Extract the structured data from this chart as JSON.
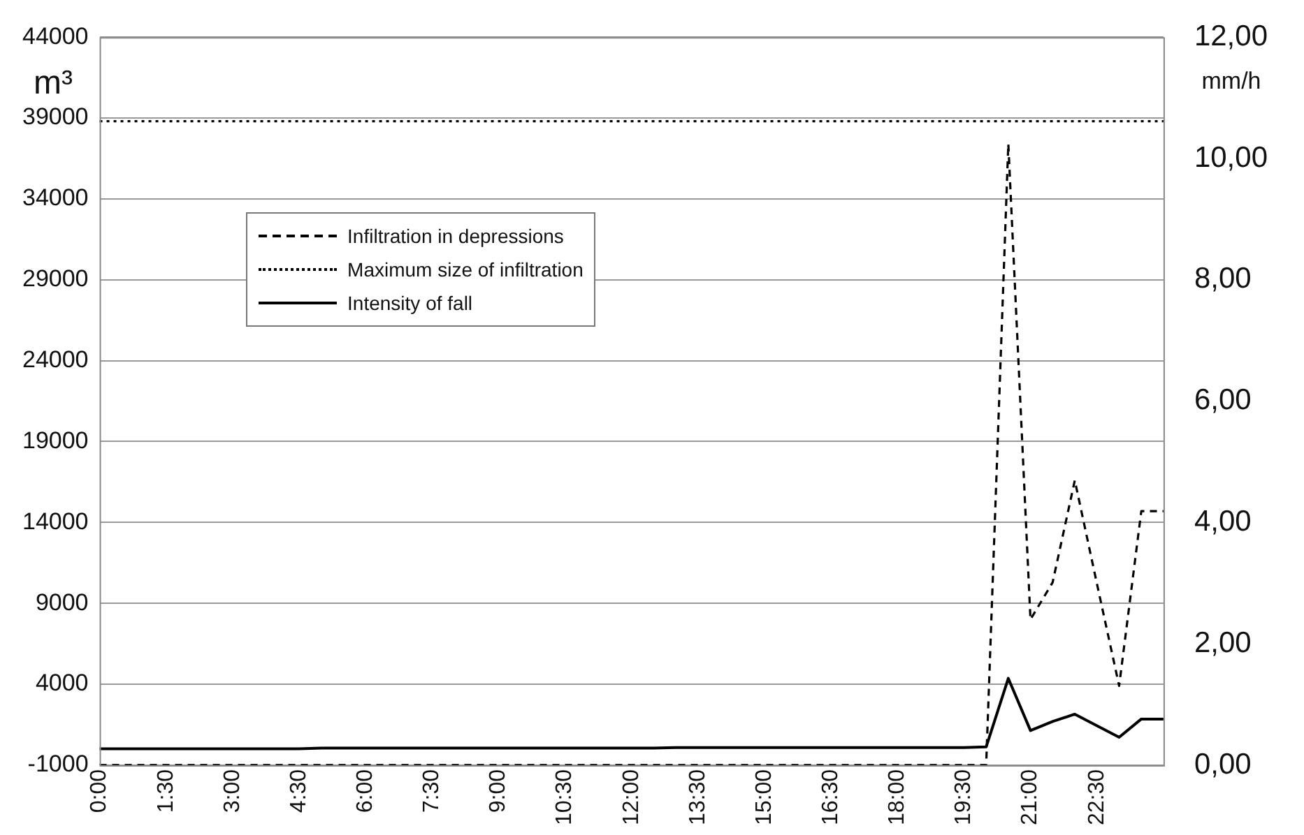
{
  "chart_data": {
    "type": "line",
    "ylabel": "m³",
    "y2label": "mm/h",
    "categories": [
      "0:00",
      null,
      null,
      "1:30",
      null,
      null,
      "3:00",
      null,
      null,
      "4:30",
      null,
      null,
      "6:00",
      null,
      null,
      "7:30",
      null,
      null,
      "9:00",
      null,
      null,
      "10:30",
      null,
      null,
      "12:00",
      null,
      null,
      "13:30",
      null,
      null,
      "15:00",
      null,
      null,
      "16:30",
      null,
      null,
      "18:00",
      null,
      null,
      "19:30",
      null,
      null,
      "21:00",
      null,
      null,
      "22:30",
      null,
      null,
      null
    ],
    "series": [
      {
        "name": "Infiltration in depressions",
        "color": "#000000",
        "line_style": "dashed",
        "values": [
          -1000,
          -1000,
          -1000,
          -1000,
          -1000,
          -1000,
          -1000,
          -1000,
          -1000,
          -1000,
          -1000,
          -1000,
          -1000,
          -1000,
          -1000,
          -1000,
          -1000,
          -1000,
          -1000,
          -1000,
          -1000,
          -1000,
          -1000,
          -1000,
          -1000,
          -1000,
          -1000,
          -1000,
          -1000,
          -1000,
          -1000,
          -1000,
          -1000,
          -1000,
          -1000,
          -1000,
          -1000,
          -1000,
          -1000,
          -1000,
          -1000,
          37400,
          8000,
          10300,
          16600,
          10200,
          3900,
          14700,
          14700
        ]
      },
      {
        "name": "Maximum size of infiltration",
        "color": "#000000",
        "line_style": "dotted",
        "values": [
          38800,
          38800,
          38800,
          38800,
          38800,
          38800,
          38800,
          38800,
          38800,
          38800,
          38800,
          38800,
          38800,
          38800,
          38800,
          38800,
          38800,
          38800,
          38800,
          38800,
          38800,
          38800,
          38800,
          38800,
          38800,
          38800,
          38800,
          38800,
          38800,
          38800,
          38800,
          38800,
          38800,
          38800,
          38800,
          38800,
          38800,
          38800,
          38800,
          38800,
          38800,
          38800,
          38800,
          38800,
          38800,
          38800,
          38800,
          38800,
          38800
        ]
      },
      {
        "name": "Intensity of fall",
        "color": "#000000",
        "line_style": "solid",
        "axis": "y2",
        "values": [
          0.27,
          0.27,
          0.27,
          0.27,
          0.27,
          0.27,
          0.27,
          0.27,
          0.27,
          0.27,
          0.28,
          0.28,
          0.28,
          0.28,
          0.28,
          0.28,
          0.28,
          0.28,
          0.28,
          0.28,
          0.28,
          0.28,
          0.28,
          0.28,
          0.28,
          0.28,
          0.29,
          0.29,
          0.29,
          0.29,
          0.29,
          0.29,
          0.29,
          0.29,
          0.29,
          0.29,
          0.29,
          0.29,
          0.29,
          0.29,
          0.3,
          1.43,
          0.57,
          0.72,
          0.84,
          0.65,
          0.46,
          0.76,
          0.76
        ]
      }
    ],
    "ylim": [
      -1000,
      44000
    ],
    "yticks": [
      -1000,
      4000,
      9000,
      14000,
      19000,
      24000,
      29000,
      34000,
      39000,
      44000
    ],
    "y2lim": [
      0,
      12
    ],
    "y2ticks": [
      {
        "value": 0,
        "label": "0,00"
      },
      {
        "value": 2,
        "label": "2,00"
      },
      {
        "value": 4,
        "label": "4,00"
      },
      {
        "value": 6,
        "label": "6,00"
      },
      {
        "value": 8,
        "label": "8,00"
      },
      {
        "value": 10,
        "label": "10,00"
      },
      {
        "value": 12,
        "label": "12,00"
      }
    ],
    "grid": "y",
    "legend": "top left",
    "marker": "none"
  }
}
